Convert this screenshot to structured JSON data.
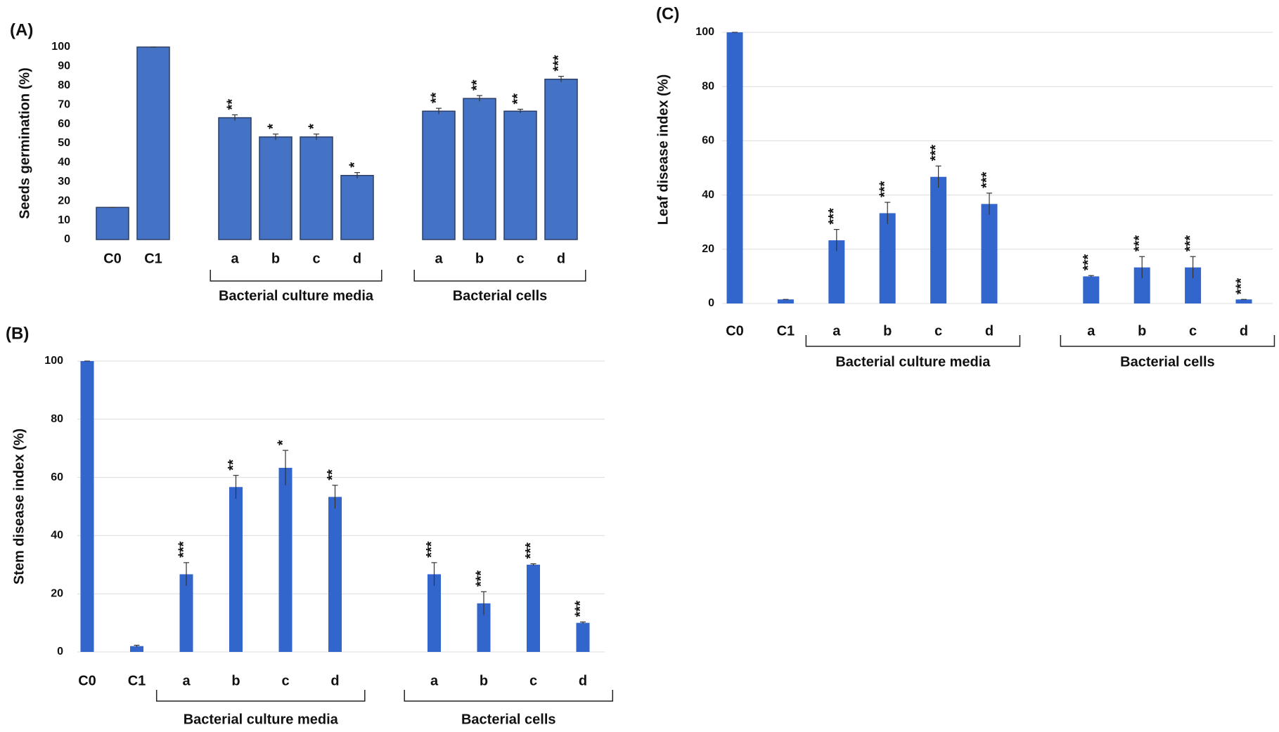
{
  "chart_data": [
    {
      "type": "bar",
      "panel": "(A)",
      "y_label": "Seeds germination (%)",
      "color": "#4472c4",
      "grid": false,
      "ylim": [
        0,
        100
      ],
      "yticks": [
        0,
        10,
        20,
        30,
        40,
        50,
        60,
        70,
        80,
        90,
        100
      ],
      "groups": [
        {
          "categories": [
            "C0",
            "C1"
          ],
          "values": [
            16.7,
            100
          ],
          "errors": [
            0,
            0
          ],
          "annotations": [
            null,
            null
          ]
        },
        {
          "label": "Bacterial culture media",
          "categories": [
            "a",
            "b",
            "c",
            "d"
          ],
          "values": [
            63.3,
            53.3,
            53.3,
            33.3
          ],
          "errors": [
            1.5,
            1.5,
            1.5,
            1.5
          ],
          "annotations": [
            "**",
            "*",
            "*",
            "*"
          ]
        },
        {
          "label": "Bacterial cells",
          "categories": [
            "a",
            "b",
            "c",
            "d"
          ],
          "values": [
            66.7,
            73.3,
            66.7,
            83.3
          ],
          "errors": [
            1.5,
            1.5,
            1,
            1.5
          ],
          "annotations": [
            "**",
            "**",
            "**",
            "***"
          ]
        }
      ]
    },
    {
      "type": "bar",
      "panel": "(B)",
      "y_label": "Stem disease index (%)",
      "color": "#3366cc",
      "grid": true,
      "ylim": [
        0,
        100
      ],
      "yticks": [
        0,
        20,
        40,
        60,
        80,
        100
      ],
      "groups": [
        {
          "categories": [
            "C0",
            "C1"
          ],
          "values": [
            100,
            2
          ],
          "errors": [
            0,
            0.3
          ],
          "annotations": [
            null,
            null
          ]
        },
        {
          "label": "Bacterial culture media",
          "categories": [
            "a",
            "b",
            "c",
            "d"
          ],
          "values": [
            26.7,
            56.7,
            63.3,
            53.3
          ],
          "errors": [
            4,
            4,
            6,
            4
          ],
          "annotations": [
            "***",
            "**",
            "*",
            "**"
          ]
        },
        {
          "label": "Bacterial cells",
          "categories": [
            "a",
            "b",
            "c",
            "d"
          ],
          "values": [
            26.7,
            16.7,
            30,
            10
          ],
          "errors": [
            4,
            4,
            0.3,
            0.3
          ],
          "annotations": [
            "***",
            "***",
            "***",
            "***"
          ]
        }
      ]
    },
    {
      "type": "bar",
      "panel": "(C)",
      "y_label": "Leaf disease index (%)",
      "color": "#3366cc",
      "grid": true,
      "ylim": [
        0,
        100
      ],
      "yticks": [
        0,
        20,
        40,
        60,
        80,
        100
      ],
      "groups": [
        {
          "categories": [
            "C0",
            "C1"
          ],
          "values": [
            100,
            1.5
          ],
          "errors": [
            0,
            0
          ],
          "annotations": [
            null,
            null
          ]
        },
        {
          "label": "Bacterial culture media",
          "categories": [
            "a",
            "b",
            "c",
            "d"
          ],
          "values": [
            23.3,
            33.3,
            46.7,
            36.7
          ],
          "errors": [
            4,
            4,
            4,
            4
          ],
          "annotations": [
            "***",
            "***",
            "***",
            "***"
          ]
        },
        {
          "label": "Bacterial cells",
          "categories": [
            "a",
            "b",
            "c",
            "d"
          ],
          "values": [
            10,
            13.3,
            13.3,
            1.5
          ],
          "errors": [
            0.3,
            4,
            4,
            0
          ],
          "annotations": [
            "***",
            "***",
            "***",
            "***"
          ]
        }
      ]
    }
  ]
}
